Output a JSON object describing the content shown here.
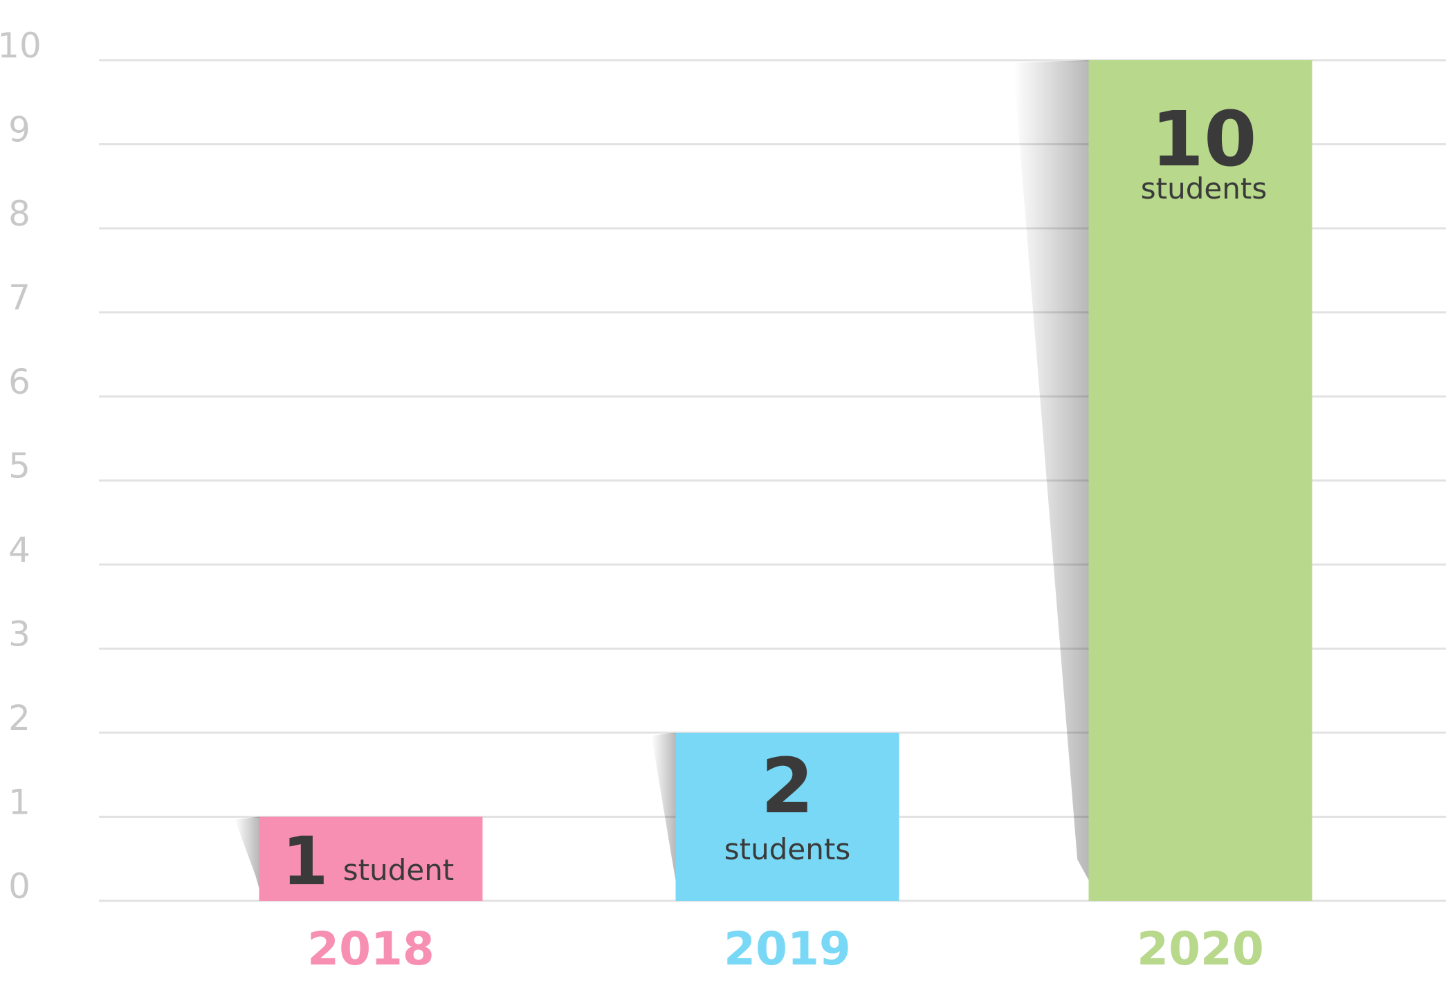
{
  "chart_data": {
    "type": "bar",
    "categories": [
      "2018",
      "2019",
      "2020"
    ],
    "values": [
      1,
      2,
      10
    ],
    "value_labels": [
      {
        "number": "1",
        "unit": "student"
      },
      {
        "number": "2",
        "unit": "students"
      },
      {
        "number": "10",
        "unit": "students"
      }
    ],
    "colors": [
      "#f78fb3",
      "#78d8f5",
      "#b8d88c"
    ],
    "title": "",
    "xlabel": "",
    "ylabel": "",
    "ylim": [
      0,
      10
    ],
    "yticks": [
      "0",
      "1",
      "2",
      "3",
      "4",
      "5",
      "6",
      "7",
      "8",
      "9",
      "10"
    ],
    "grid": true,
    "legend": "none"
  }
}
